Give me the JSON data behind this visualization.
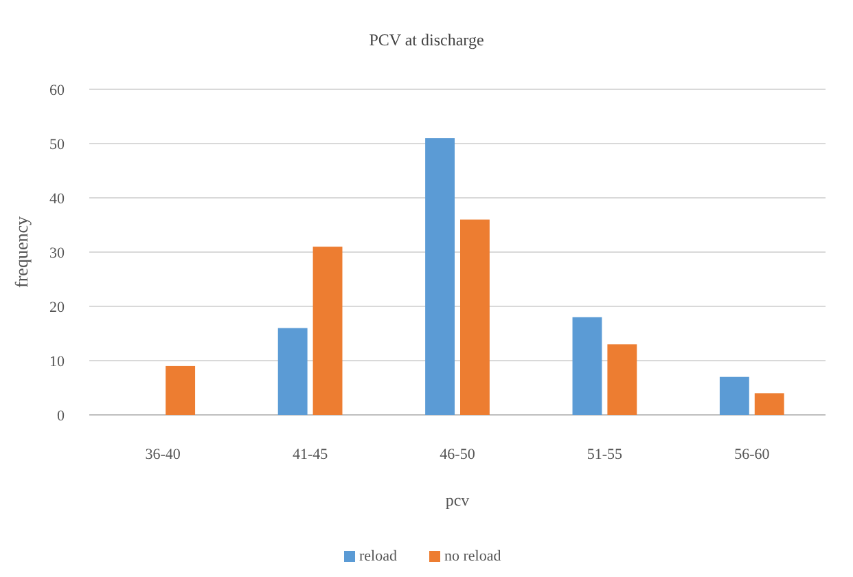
{
  "chart_data": {
    "type": "bar",
    "title": "PCV at discharge",
    "xlabel": "pcv",
    "ylabel": "frequency",
    "categories": [
      "36-40",
      "41-45",
      "46-50",
      "51-55",
      "56-60"
    ],
    "series": [
      {
        "name": "reload",
        "color": "#5b9bd5",
        "values": [
          null,
          16,
          51,
          18,
          7
        ]
      },
      {
        "name": "no reload",
        "color": "#ed7d31",
        "values": [
          9,
          31,
          36,
          13,
          4
        ]
      }
    ],
    "ylim": [
      0,
      60
    ],
    "yticks": [
      0,
      10,
      20,
      30,
      40,
      50,
      60
    ],
    "grid": "y",
    "legend": "bottom"
  }
}
